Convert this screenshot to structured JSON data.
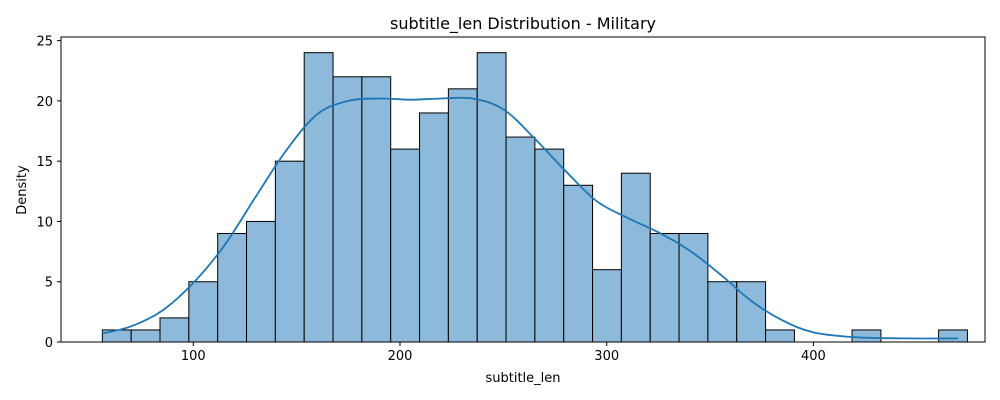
{
  "chart_data": {
    "type": "bar",
    "title": "subtitle_len Distribution - Military",
    "xlabel": "subtitle_len",
    "ylabel": "Density",
    "xlim": [
      36,
      483
    ],
    "ylim": [
      0,
      25.3
    ],
    "xticks": [
      100,
      200,
      300,
      400
    ],
    "yticks": [
      0,
      5,
      10,
      15,
      20,
      25
    ],
    "bin_start": 56,
    "bin_width": 13.95,
    "values": [
      1,
      1,
      2,
      5,
      9,
      10,
      15,
      24,
      22,
      22,
      16,
      19,
      21,
      24,
      17,
      16,
      13,
      6,
      14,
      9,
      9,
      5,
      5,
      1,
      0,
      0,
      1,
      0,
      0,
      1
    ],
    "bar_color": "#8db9db",
    "bar_edge_color": "#000000",
    "kde": {
      "color": "#1f77b4",
      "x": [
        56,
        70,
        85,
        100,
        115,
        130,
        145,
        160,
        175,
        190,
        205,
        220,
        235,
        250,
        265,
        280,
        295,
        310,
        325,
        340,
        355,
        370,
        385,
        400,
        420,
        445,
        470
      ],
      "y": [
        0.7,
        1.3,
        2.6,
        4.9,
        8.0,
        12.0,
        15.9,
        18.9,
        20.0,
        20.2,
        20.1,
        20.2,
        20.2,
        19.3,
        16.9,
        14.2,
        11.7,
        10.3,
        9.1,
        7.6,
        5.6,
        3.4,
        1.8,
        0.8,
        0.4,
        0.3,
        0.3
      ]
    },
    "grid": false,
    "legend": "none"
  }
}
